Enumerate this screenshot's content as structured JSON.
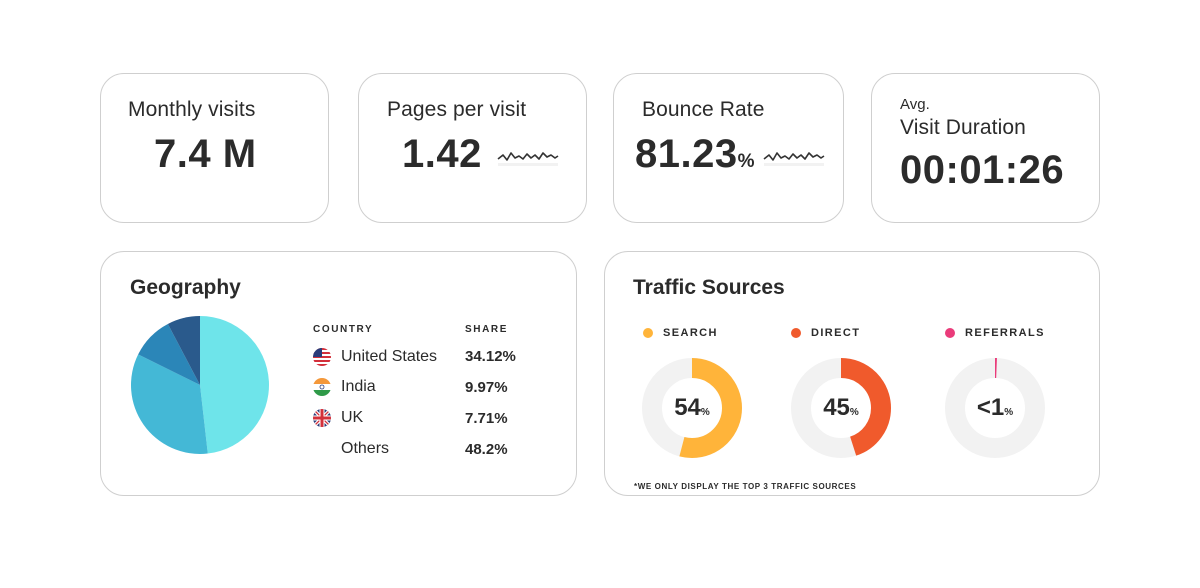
{
  "stats": {
    "monthly_visits": {
      "label": "Monthly visits",
      "value": "7.4 M"
    },
    "pages_per_visit": {
      "label": "Pages per visit",
      "value": "1.42"
    },
    "bounce_rate": {
      "label": "Bounce Rate",
      "value": "81.23",
      "unit": "%"
    },
    "visit_duration": {
      "prefix": "Avg.",
      "label": "Visit Duration",
      "value": "00:01:26"
    }
  },
  "geography": {
    "title": "Geography",
    "columns": {
      "country": "COUNTRY",
      "share": "SHARE"
    },
    "rows": [
      {
        "country": "United States",
        "share": "34.12%",
        "flag": "us-flag-icon"
      },
      {
        "country": "India",
        "share": "9.97%",
        "flag": "india-flag-icon"
      },
      {
        "country": "UK",
        "share": "7.71%",
        "flag": "uk-flag-icon"
      },
      {
        "country": "Others",
        "share": "48.2%",
        "flag": ""
      }
    ],
    "colors": {
      "us": "#44b8d6",
      "india": "#2b86b8",
      "uk": "#2a5a8c",
      "others": "#6ee4ea"
    }
  },
  "traffic": {
    "title": "Traffic Sources",
    "sources": [
      {
        "label": "SEARCH",
        "value": "54",
        "unit": "%",
        "color": "#ffb43a"
      },
      {
        "label": "DIRECT",
        "value": "45",
        "unit": "%",
        "color": "#f05a2c"
      },
      {
        "label": "REFERRALS",
        "value": "<1",
        "unit": "%",
        "color": "#ea3b7a"
      }
    ],
    "track_color": "#f2f2f2",
    "footnote": "*WE ONLY DISPLAY THE TOP 3 TRAFFIC SOURCES"
  },
  "chart_data": {
    "type": "pie",
    "categories": [
      "United States",
      "India",
      "UK",
      "Others"
    ],
    "values": [
      34.12,
      9.97,
      7.71,
      48.2
    ]
  }
}
